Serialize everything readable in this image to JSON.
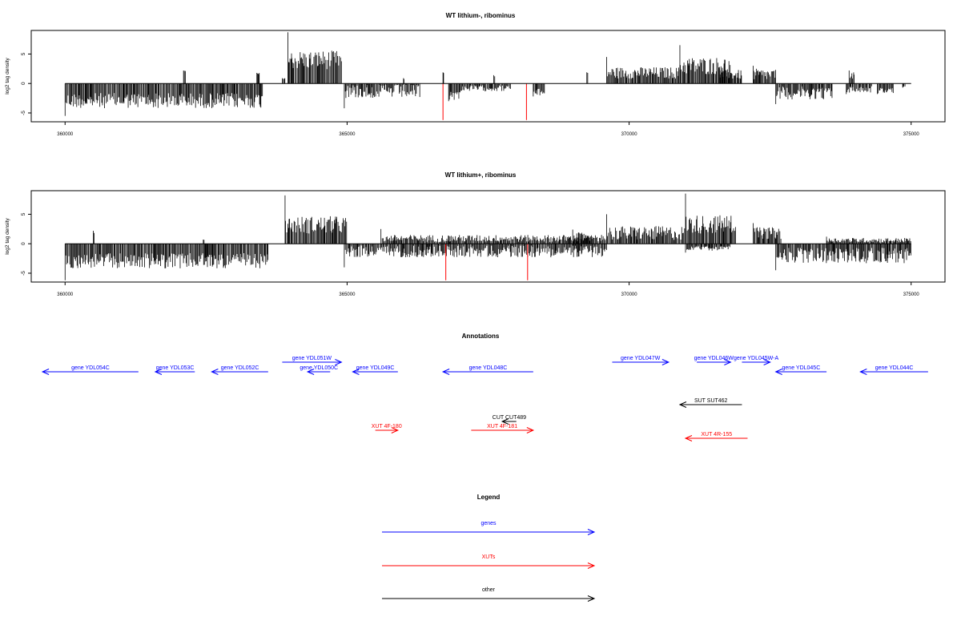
{
  "chart_data": [
    {
      "type": "bar",
      "title": "WT lithium-, ribominus",
      "ylabel": "log2 tag density",
      "xlim": [
        359400,
        375600
      ],
      "ylim": [
        -6.5,
        9
      ],
      "xticks": [
        "360000",
        "365000",
        "370000",
        "375000"
      ],
      "yticks": [
        "-5",
        "0",
        "5"
      ],
      "x_range": [
        360000,
        375000
      ],
      "red_markers": [
        {
          "x": 366700,
          "value": -6.2
        },
        {
          "x": 368180,
          "value": -6.2
        }
      ],
      "segments": [
        {
          "start": 360000,
          "end": 363500,
          "sign": -1,
          "level": 2.9,
          "var": 1.3,
          "peak": 5.5
        },
        {
          "start": 362100,
          "end": 362150,
          "sign": 1,
          "level": 2.0,
          "var": 0.3,
          "peak": 2.2
        },
        {
          "start": 363400,
          "end": 363450,
          "sign": 1,
          "level": 1.6,
          "var": 0.2,
          "peak": 1.8
        },
        {
          "start": 363850,
          "end": 363900,
          "sign": 1,
          "level": 0.8,
          "var": 0.1,
          "peak": 0.9
        },
        {
          "start": 363950,
          "end": 364900,
          "sign": 1,
          "level": 4.0,
          "var": 1.6,
          "peak": 8.7
        },
        {
          "start": 364950,
          "end": 366300,
          "sign": -1,
          "level": 1.3,
          "var": 1.2,
          "peak": 4.2
        },
        {
          "start": 366000,
          "end": 366020,
          "sign": 1,
          "level": 0.8,
          "var": 0.1,
          "peak": 0.9
        },
        {
          "start": 366700,
          "end": 366720,
          "sign": 1,
          "level": 1.8,
          "var": 0.1,
          "peak": 1.9
        },
        {
          "start": 366800,
          "end": 367000,
          "sign": -1,
          "level": 2.0,
          "var": 0.8,
          "peak": 3.0
        },
        {
          "start": 367000,
          "end": 367900,
          "sign": -1,
          "level": 0.8,
          "var": 0.5,
          "peak": 1.5
        },
        {
          "start": 367600,
          "end": 367620,
          "sign": 1,
          "level": 1.3,
          "var": 0.1,
          "peak": 1.4
        },
        {
          "start": 368300,
          "end": 368500,
          "sign": -1,
          "level": 1.5,
          "var": 0.6,
          "peak": 2.2
        },
        {
          "start": 369250,
          "end": 369270,
          "sign": 1,
          "level": 1.8,
          "var": 0.1,
          "peak": 1.9
        },
        {
          "start": 369600,
          "end": 370900,
          "sign": 1,
          "level": 1.8,
          "var": 1.0,
          "peak": 4.5
        },
        {
          "start": 370900,
          "end": 371800,
          "sign": 1,
          "level": 3.0,
          "var": 1.5,
          "peak": 6.5
        },
        {
          "start": 371600,
          "end": 372000,
          "sign": 1,
          "level": 1.5,
          "var": 0.8,
          "peak": 2.5
        },
        {
          "start": 372200,
          "end": 372600,
          "sign": 1,
          "level": 1.5,
          "var": 1.0,
          "peak": 3.0
        },
        {
          "start": 372600,
          "end": 373600,
          "sign": -1,
          "level": 1.6,
          "var": 1.1,
          "peak": 3.5
        },
        {
          "start": 373900,
          "end": 374000,
          "sign": 1,
          "level": 1.4,
          "var": 0.6,
          "peak": 2.2
        },
        {
          "start": 373850,
          "end": 374300,
          "sign": -1,
          "level": 1.0,
          "var": 0.6,
          "peak": 1.8
        },
        {
          "start": 374400,
          "end": 374700,
          "sign": -1,
          "level": 1.2,
          "var": 0.5,
          "peak": 1.8
        },
        {
          "start": 374850,
          "end": 374900,
          "sign": -1,
          "level": 0.6,
          "var": 0.1,
          "peak": 0.7
        }
      ]
    },
    {
      "type": "bar",
      "title": "WT lithium+, ribominus",
      "ylabel": "log2 tag density",
      "xlim": [
        359400,
        375600
      ],
      "ylim": [
        -6.5,
        9
      ],
      "xticks": [
        "360000",
        "365000",
        "370000",
        "375000"
      ],
      "yticks": [
        "-5",
        "0",
        "5"
      ],
      "x_range": [
        360000,
        375000
      ],
      "red_markers": [
        {
          "x": 366750,
          "value": -6.2
        },
        {
          "x": 368200,
          "value": -6.2
        }
      ],
      "segments": [
        {
          "start": 360000,
          "end": 363600,
          "sign": -1,
          "level": 2.9,
          "var": 1.3,
          "peak": 6.2
        },
        {
          "start": 360500,
          "end": 360520,
          "sign": 1,
          "level": 2.0,
          "var": 0.2,
          "peak": 2.2
        },
        {
          "start": 362450,
          "end": 362470,
          "sign": 1,
          "level": 0.6,
          "var": 0.1,
          "peak": 0.7
        },
        {
          "start": 363900,
          "end": 365000,
          "sign": 1,
          "level": 3.2,
          "var": 1.5,
          "peak": 8.2
        },
        {
          "start": 364950,
          "end": 369600,
          "sign": -1,
          "level": 1.3,
          "var": 1.0,
          "peak": 4.0
        },
        {
          "start": 365600,
          "end": 369600,
          "sign": 1,
          "level": 0.9,
          "var": 0.6,
          "peak": 2.5
        },
        {
          "start": 369000,
          "end": 369300,
          "sign": 1,
          "level": 1.3,
          "var": 0.6,
          "peak": 2.4
        },
        {
          "start": 369600,
          "end": 371000,
          "sign": 1,
          "level": 1.8,
          "var": 1.2,
          "peak": 5.0
        },
        {
          "start": 371000,
          "end": 371900,
          "sign": 1,
          "level": 3.3,
          "var": 1.6,
          "peak": 8.5
        },
        {
          "start": 371000,
          "end": 371800,
          "sign": -1,
          "level": 0.8,
          "var": 0.4,
          "peak": 1.5
        },
        {
          "start": 372200,
          "end": 372700,
          "sign": 1,
          "level": 1.8,
          "var": 1.0,
          "peak": 3.5
        },
        {
          "start": 372600,
          "end": 375000,
          "sign": -1,
          "level": 2.0,
          "var": 1.3,
          "peak": 4.5
        },
        {
          "start": 373500,
          "end": 375000,
          "sign": 1,
          "level": 0.6,
          "var": 0.4,
          "peak": 1.2
        }
      ]
    }
  ],
  "annotations": {
    "title": "Annotations",
    "xlim": [
      359400,
      375600
    ],
    "features": [
      {
        "label": "gene YDL054C",
        "x1": 361300,
        "x2": 359600,
        "row": 0,
        "color": "blue"
      },
      {
        "label": "gene YDL053C",
        "x1": 362300,
        "x2": 361600,
        "row": 0,
        "color": "blue"
      },
      {
        "label": "gene YDL052C",
        "x1": 363600,
        "x2": 362600,
        "row": 0,
        "color": "blue"
      },
      {
        "label": "gene YDL051W",
        "x1": 363850,
        "x2": 364900,
        "row": 1,
        "color": "blue"
      },
      {
        "label": "gene YDL050C",
        "x1": 364700,
        "x2": 364300,
        "row": 0,
        "color": "blue"
      },
      {
        "label": "gene YDL049C",
        "x1": 365900,
        "x2": 365100,
        "row": 0,
        "color": "blue"
      },
      {
        "label": "gene YDL048C",
        "x1": 368300,
        "x2": 366700,
        "row": 0,
        "color": "blue"
      },
      {
        "label": "gene YDL047W",
        "x1": 369700,
        "x2": 370700,
        "row": 1,
        "color": "blue"
      },
      {
        "label": "gene YDL046W",
        "x1": 371200,
        "x2": 371800,
        "row": 1,
        "color": "blue"
      },
      {
        "label": "gene YDL045W-A",
        "x1": 372000,
        "x2": 372500,
        "row": 1,
        "color": "blue"
      },
      {
        "label": "gene YDL045C",
        "x1": 373500,
        "x2": 372600,
        "row": 0,
        "color": "blue"
      },
      {
        "label": "gene YDL044C",
        "x1": 375300,
        "x2": 374100,
        "row": 0,
        "color": "blue"
      },
      {
        "label": "SUT SUT462",
        "x1": 372000,
        "x2": 370900,
        "row": 2,
        "color": "black"
      },
      {
        "label": "CUT CUT489",
        "x1": 368000,
        "x2": 367750,
        "row": 3,
        "color": "black"
      },
      {
        "label": "XUT 4F-180",
        "x1": 365500,
        "x2": 365900,
        "row": 4,
        "color": "red"
      },
      {
        "label": "XUT 4F-181",
        "x1": 367200,
        "x2": 368300,
        "row": 4,
        "color": "red"
      },
      {
        "label": "XUT 4R-155",
        "x1": 372100,
        "x2": 371000,
        "row": 5,
        "color": "red"
      }
    ]
  },
  "legend": {
    "title": "Legend",
    "items": [
      {
        "label": "genes",
        "color": "blue"
      },
      {
        "label": "XUTs",
        "color": "red"
      },
      {
        "label": "other",
        "color": "black"
      }
    ]
  },
  "colors": {
    "genes": "#0000ff",
    "xuts": "#ff0000",
    "other": "#000000",
    "marker": "#ff0000"
  }
}
